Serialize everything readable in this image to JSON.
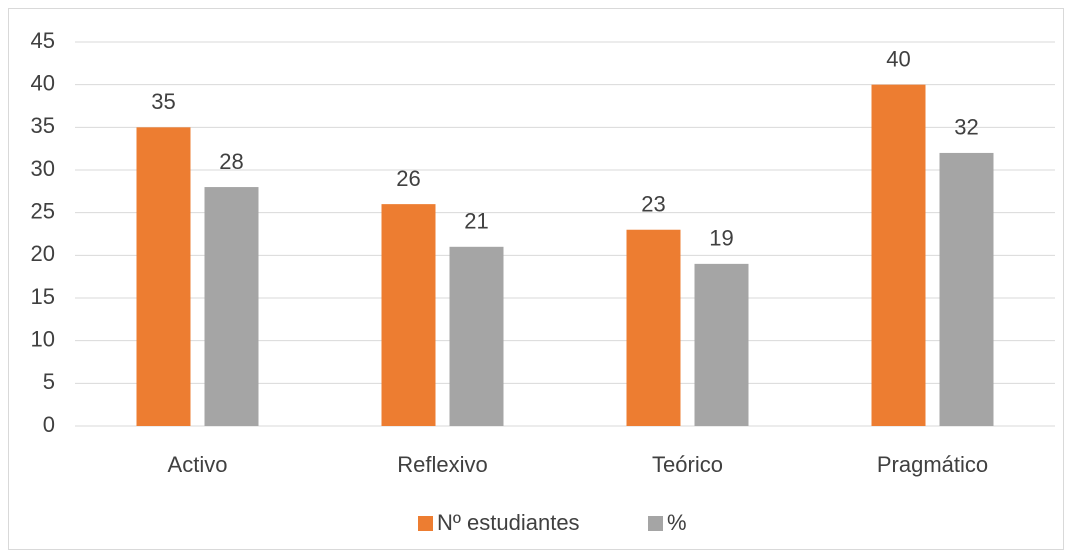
{
  "chart_data": {
    "type": "bar",
    "categories": [
      "Activo",
      "Reflexivo",
      "Teórico",
      "Pragmático"
    ],
    "series": [
      {
        "name": "Nº estudiantes",
        "color": "#ed7d31",
        "values": [
          35,
          26,
          23,
          40
        ]
      },
      {
        "name": "%",
        "color": "#a5a5a5",
        "values": [
          28,
          21,
          19,
          32
        ]
      }
    ],
    "ylim": [
      0,
      45
    ],
    "yticks": [
      0,
      5,
      10,
      15,
      20,
      25,
      30,
      35,
      40,
      45
    ],
    "grid": true,
    "legend": "bottom",
    "data_labels": true
  }
}
